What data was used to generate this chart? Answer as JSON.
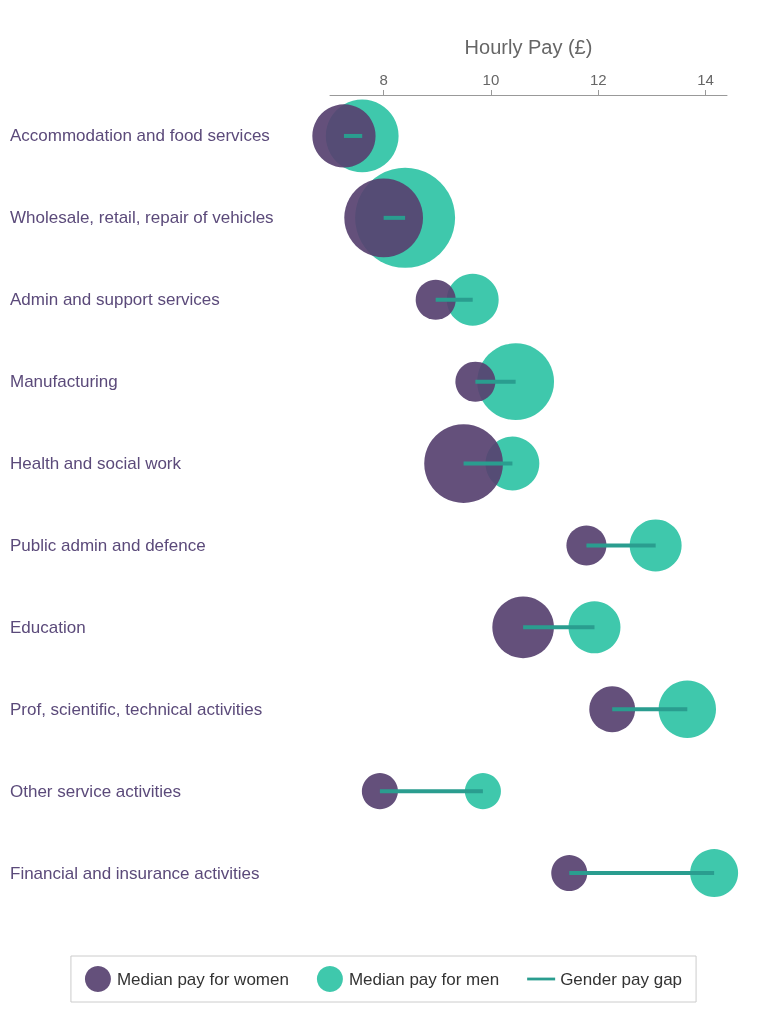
{
  "chart_data": {
    "type": "bubble",
    "orientation": "horizontal",
    "xlabel": "Hourly Pay (£)",
    "categories": [
      "Accommodation and food services",
      "Wholesale, retail, repair of vehicles",
      "Admin and support services",
      "Manufacturing",
      "Health and social work",
      "Public admin and defence",
      "Education",
      "Prof, scientific, technical activities",
      "Other service activities",
      "Financial and insurance activities"
    ],
    "xlim": [
      7,
      14.4
    ],
    "xticks": [
      8,
      10,
      12,
      14
    ],
    "grid": false,
    "legend": "bottom",
    "series": [
      {
        "name": "Median pay for women",
        "type": "bubble",
        "color": "#574170",
        "values": [
          7.26,
          8.0,
          8.97,
          9.71,
          9.49,
          11.78,
          10.6,
          12.26,
          7.93,
          11.46
        ],
        "sizes": [
          0.4,
          0.62,
          0.16,
          0.16,
          0.62,
          0.16,
          0.38,
          0.21,
          0.13,
          0.13
        ]
      },
      {
        "name": "Median pay for men",
        "type": "bubble",
        "color": "#2fc3a5",
        "values": [
          7.6,
          8.4,
          9.66,
          10.46,
          10.4,
          13.07,
          11.93,
          13.66,
          9.85,
          14.16
        ],
        "sizes": [
          0.53,
          1,
          0.27,
          0.59,
          0.29,
          0.27,
          0.27,
          0.33,
          0.13,
          0.23
        ]
      },
      {
        "name": "Gender pay gap",
        "type": "bar",
        "color": "#2a9d8f",
        "base": [
          7.26,
          8.0,
          8.97,
          9.71,
          9.49,
          11.78,
          10.6,
          12.26,
          7.93,
          11.46
        ],
        "values": [
          0.34,
          0.4,
          0.69,
          0.75,
          0.91,
          1.29,
          1.33,
          1.4,
          1.92,
          2.7
        ]
      }
    ]
  }
}
